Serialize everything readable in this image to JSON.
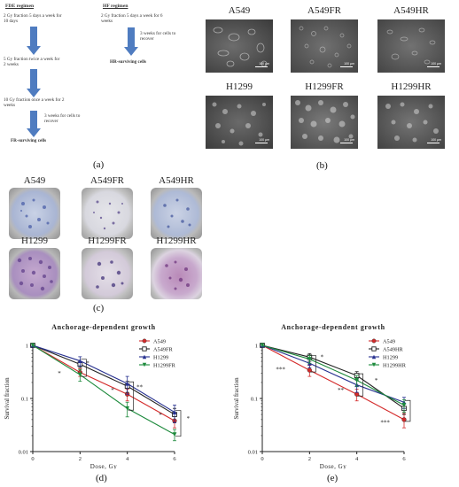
{
  "panel_a": {
    "fde_header": "FDE regimen",
    "hf_header": "HF regimen",
    "fde_steps": [
      "2 Gy fraction 5 days a week for 10 days",
      "5 Gy fraction twice a week for 2 weeks",
      "10 Gy fraction once a week for 2 weeks",
      "3 weeks for cells to recover"
    ],
    "fde_result": "FR-surviving cells",
    "hf_steps": [
      "2 Gy fraction 5 days a week for 6 weeks",
      "3 weeks for cells to recover"
    ],
    "hf_result": "HR-surviving cells",
    "label": "(a)"
  },
  "panel_b": {
    "titles": [
      "A549",
      "A549FR",
      "A549HR",
      "H1299",
      "H1299FR",
      "H1299HR"
    ],
    "scale_bar": "100 μm",
    "label": "(b)"
  },
  "panel_c": {
    "titles": [
      "A549",
      "A549FR",
      "A549HR",
      "H1299",
      "H1299FR",
      "H1299HR"
    ],
    "label": "(c)"
  },
  "panel_d_label": "(d)",
  "panel_e_label": "(e)",
  "chart_data": [
    {
      "type": "line",
      "title": "Anchorage-dependent growth",
      "xlabel": "Dose, Gy",
      "ylabel": "Survival fraction",
      "x": [
        0,
        2,
        4,
        6
      ],
      "xlim": [
        0,
        6
      ],
      "xticks": [
        "0",
        "2",
        "4",
        "6"
      ],
      "ylim": [
        0.01,
        1
      ],
      "yscale": "log",
      "yticks": [
        "0.01",
        "0.1",
        "1"
      ],
      "legend_position": "top-right",
      "series": [
        {
          "name": "A549",
          "color": "#d42a2a",
          "marker": "circle",
          "values": [
            1.0,
            0.31,
            0.12,
            0.038
          ],
          "errors": [
            0,
            0.05,
            0.03,
            0.01
          ]
        },
        {
          "name": "A549FR",
          "color": "#222222",
          "marker": "square",
          "values": [
            1.0,
            0.44,
            0.17,
            0.05
          ],
          "errors": [
            0,
            0.06,
            0.04,
            0.015
          ]
        },
        {
          "name": "H1299",
          "color": "#26308f",
          "marker": "triangle",
          "values": [
            1.0,
            0.51,
            0.19,
            0.055
          ],
          "errors": [
            0,
            0.1,
            0.07,
            0.02
          ]
        },
        {
          "name": "H1299FR",
          "color": "#1d8a3c",
          "marker": "triangle-down",
          "values": [
            1.0,
            0.28,
            0.065,
            0.021
          ],
          "errors": [
            0,
            0.07,
            0.02,
            0.005
          ]
        }
      ],
      "annotations": [
        "*",
        "*",
        "*",
        "**",
        "*",
        "*"
      ]
    },
    {
      "type": "line",
      "title": "Anchorage-dependent growth",
      "xlabel": "Dose, Gy",
      "ylabel": "Survival fraction",
      "x": [
        0,
        2,
        4,
        6
      ],
      "xlim": [
        0,
        6
      ],
      "xticks": [
        "0",
        "2",
        "4",
        "6"
      ],
      "ylim": [
        0.01,
        1
      ],
      "yscale": "log",
      "yticks": [
        "0.01",
        "0.1",
        "1"
      ],
      "legend_position": "top-right",
      "series": [
        {
          "name": "A549",
          "color": "#d42a2a",
          "marker": "circle",
          "values": [
            1.0,
            0.34,
            0.12,
            0.04
          ],
          "errors": [
            0,
            0.08,
            0.03,
            0.012
          ]
        },
        {
          "name": "A549HR",
          "color": "#222222",
          "marker": "square",
          "values": [
            1.0,
            0.6,
            0.27,
            0.065
          ],
          "errors": [
            0,
            0.1,
            0.05,
            0.015
          ]
        },
        {
          "name": "H1299",
          "color": "#26308f",
          "marker": "triangle",
          "values": [
            1.0,
            0.46,
            0.18,
            0.085
          ],
          "errors": [
            0,
            0.08,
            0.05,
            0.02
          ]
        },
        {
          "name": "H1299HR",
          "color": "#1d8a3c",
          "marker": "triangle-down",
          "values": [
            1.0,
            0.55,
            0.22,
            0.075
          ],
          "errors": [
            0,
            0.09,
            0.05,
            0.02
          ]
        }
      ],
      "annotations": [
        "***",
        "*",
        "**",
        "*",
        "***"
      ]
    }
  ]
}
